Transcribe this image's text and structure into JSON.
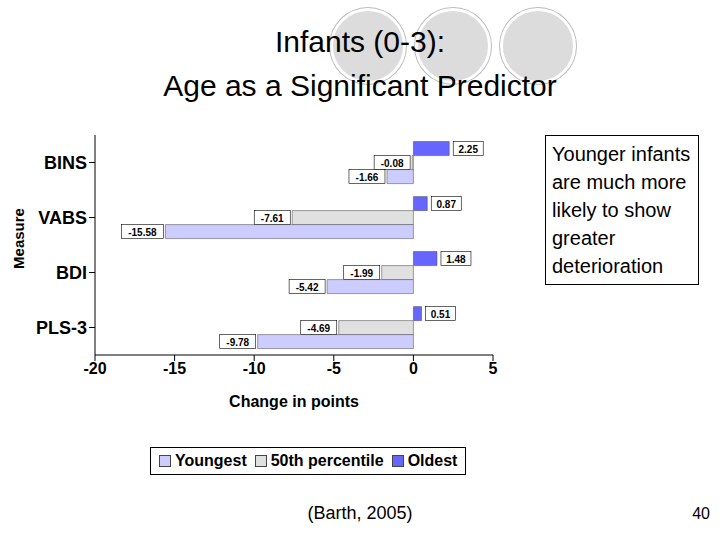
{
  "chart_data": {
    "type": "bar",
    "title": [
      "Infants (0-3):",
      "Age as a Significant Predictor"
    ],
    "orientation": "horizontal",
    "categories": [
      "BINS",
      "VABS",
      "BDI",
      "PLS-3"
    ],
    "series": [
      {
        "name": "Youngest",
        "color": "#ccccff",
        "values": [
          -1.66,
          -15.58,
          -5.42,
          -9.78
        ]
      },
      {
        "name": "50th percentile",
        "color": "#e0e0e0",
        "values": [
          -0.08,
          -7.61,
          -1.99,
          -4.69
        ]
      },
      {
        "name": "Oldest",
        "color": "#6666ff",
        "values": [
          2.25,
          0.87,
          1.48,
          0.51
        ]
      }
    ],
    "xlabel": "Change in points",
    "ylabel": "Measure",
    "xlim": [
      -20,
      5
    ],
    "xticks": [
      -20,
      -15,
      -10,
      -5,
      0,
      5
    ],
    "grid": false,
    "legend": "bottom",
    "data_labels": true,
    "annotations": [
      "Younger infants are much more likely to show greater deterioration",
      "(Barth, 2005)",
      "40"
    ]
  }
}
